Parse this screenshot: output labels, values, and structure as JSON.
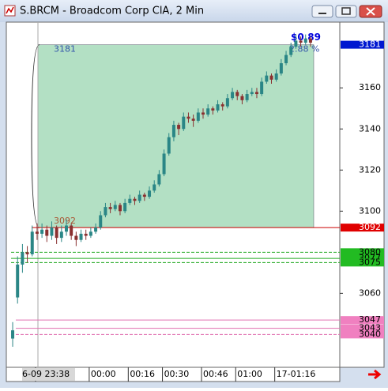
{
  "window": {
    "title": "S.BRCM - Broadcom Corp ClA, 2 Min"
  },
  "chart_data": {
    "type": "candlestick",
    "open": [
      3038,
      3058,
      3074,
      3080,
      3079,
      3090,
      3089,
      3091,
      3088,
      3092,
      3087,
      3090,
      3093,
      3088,
      3086,
      3089,
      3088,
      3090,
      3092,
      3098,
      3102,
      3101,
      3103,
      3100,
      3104,
      3106,
      3105,
      3108,
      3107,
      3110,
      3113,
      3118,
      3128,
      3136,
      3142,
      3140,
      3146,
      3145,
      3144,
      3148,
      3147,
      3150,
      3149,
      3152,
      3151,
      3155,
      3158,
      3156,
      3154,
      3157,
      3158,
      3157,
      3163,
      3166,
      3164,
      3167,
      3172,
      3176,
      3180,
      3183,
      3182,
      3184
    ],
    "high": [
      3046,
      3078,
      3084,
      3083,
      3093,
      3094,
      3094,
      3093,
      3095,
      3093,
      3093,
      3096,
      3094,
      3090,
      3091,
      3091,
      3092,
      3094,
      3100,
      3104,
      3104,
      3105,
      3104,
      3106,
      3108,
      3107,
      3110,
      3109,
      3112,
      3115,
      3120,
      3130,
      3138,
      3144,
      3143,
      3148,
      3148,
      3147,
      3150,
      3150,
      3152,
      3151,
      3154,
      3153,
      3157,
      3160,
      3159,
      3157,
      3159,
      3160,
      3160,
      3165,
      3168,
      3167,
      3169,
      3174,
      3178,
      3182,
      3186,
      3185,
      3186,
      3185
    ],
    "low": [
      3034,
      3055,
      3070,
      3075,
      3078,
      3086,
      3087,
      3085,
      3086,
      3084,
      3085,
      3088,
      3086,
      3083,
      3085,
      3086,
      3087,
      3089,
      3091,
      3097,
      3099,
      3100,
      3098,
      3099,
      3103,
      3103,
      3104,
      3105,
      3106,
      3109,
      3112,
      3117,
      3127,
      3134,
      3137,
      3139,
      3143,
      3141,
      3143,
      3145,
      3146,
      3147,
      3148,
      3149,
      3150,
      3154,
      3154,
      3152,
      3153,
      3156,
      3155,
      3156,
      3162,
      3162,
      3163,
      3166,
      3171,
      3175,
      3179,
      3180,
      3181,
      3180
    ],
    "close": [
      3042,
      3074,
      3080,
      3079,
      3090,
      3089,
      3091,
      3088,
      3092,
      3087,
      3090,
      3093,
      3088,
      3086,
      3089,
      3088,
      3090,
      3092,
      3098,
      3102,
      3101,
      3103,
      3100,
      3104,
      3106,
      3105,
      3108,
      3107,
      3110,
      3113,
      3118,
      3128,
      3136,
      3142,
      3140,
      3146,
      3145,
      3144,
      3148,
      3147,
      3150,
      3149,
      3152,
      3151,
      3155,
      3158,
      3156,
      3154,
      3157,
      3158,
      3157,
      3163,
      3166,
      3164,
      3167,
      3172,
      3176,
      3180,
      3183,
      3182,
      3184,
      3182
    ],
    "up_color": "#2a8686",
    "down_color": "#8a3030",
    "xlim": [
      -1.3,
      67
    ],
    "ylim": [
      3024,
      3192
    ],
    "xticks": [
      {
        "value": 5,
        "label": "6-09 23:38"
      },
      {
        "value": 16,
        "label": "00:00"
      },
      {
        "value": 24,
        "label": "00:16"
      },
      {
        "value": 31,
        "label": "00:30"
      },
      {
        "value": 39,
        "label": "00:46"
      },
      {
        "value": 46,
        "label": "01:00"
      },
      {
        "value": 54,
        "label": "17-01:16"
      }
    ],
    "yticks": [
      3060,
      3100,
      3120,
      3140,
      3160
    ],
    "levels": [
      {
        "value": 3092,
        "color": "#cc0000",
        "dashed": false
      },
      {
        "value": 3080,
        "color": "#22aa22",
        "dashed": true
      },
      {
        "value": 3077,
        "color": "#22aa22",
        "dashed": false
      },
      {
        "value": 3075,
        "color": "#22aa22",
        "dashed": true
      },
      {
        "value": 3047,
        "color": "#e070b0",
        "dashed": false
      },
      {
        "value": 3043,
        "color": "#e070b0",
        "dashed": false
      },
      {
        "value": 3040,
        "color": "#e070b0",
        "dashed": true
      }
    ],
    "price_markers": [
      {
        "value": 3181,
        "color": "#0018d0",
        "text_color": "#ffffff"
      },
      {
        "value": 3092,
        "color": "#e00000",
        "text_color": "#ffffff"
      },
      {
        "value": 3080,
        "color": "#22bb22",
        "text_color": "#000000"
      },
      {
        "value": 3077,
        "color": "#22bb22",
        "text_color": "#000000"
      },
      {
        "value": 3075,
        "color": "#22bb22",
        "text_color": "#000000"
      },
      {
        "value": 3047,
        "color": "#f080c0",
        "text_color": "#000000"
      },
      {
        "value": 3043,
        "color": "#f080c0",
        "text_color": "#000000"
      },
      {
        "value": 3040,
        "color": "#f080c0",
        "text_color": "#000000"
      }
    ],
    "measure": {
      "top": 3181,
      "bottom": 3092,
      "change": "$0.89",
      "percent": "2.88 %",
      "color": "#b3e0c4"
    }
  }
}
